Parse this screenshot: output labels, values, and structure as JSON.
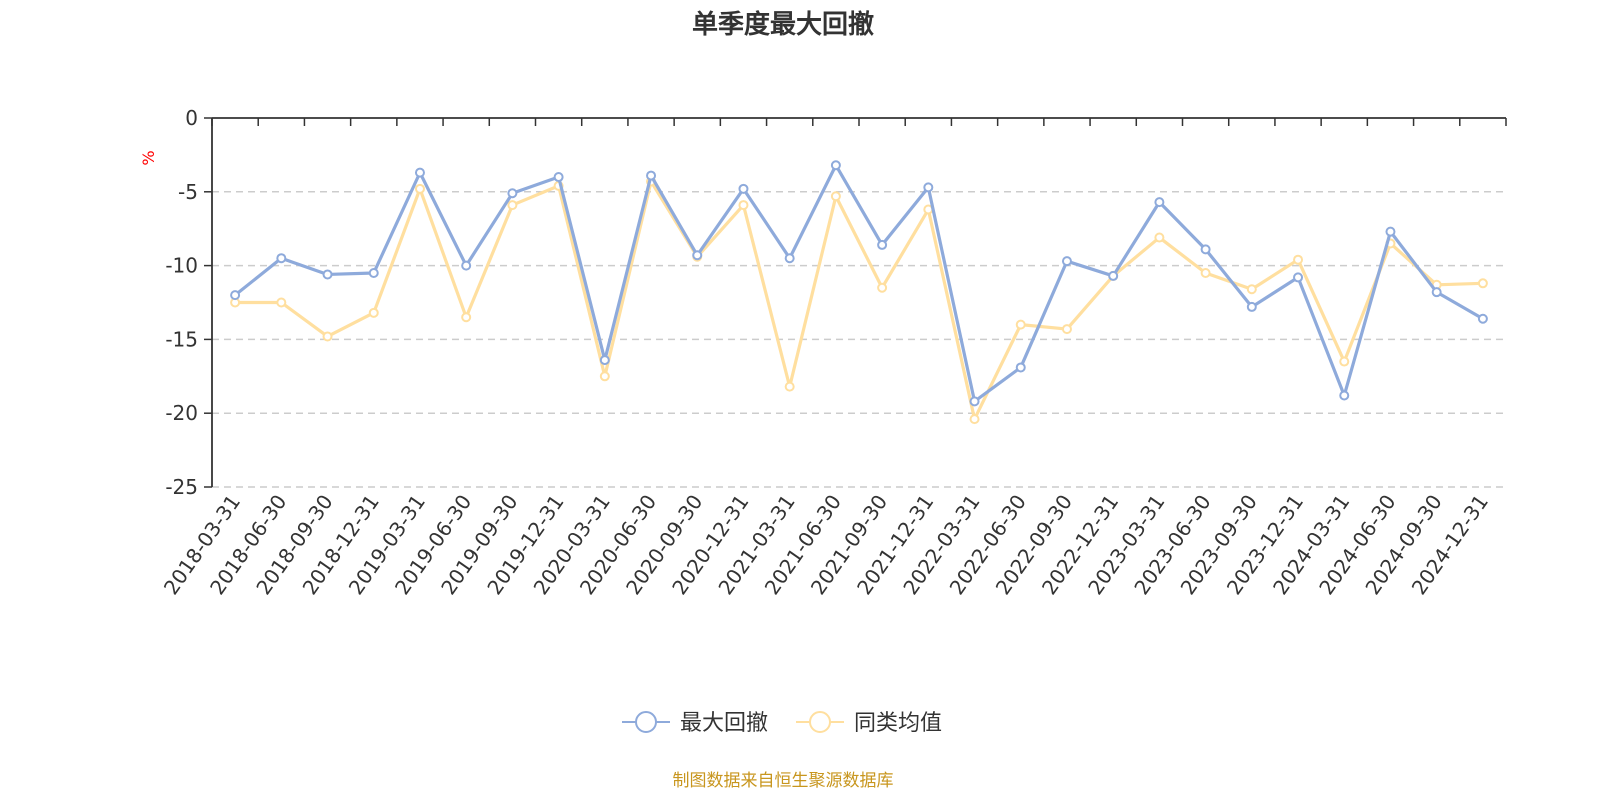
{
  "chart_data": {
    "type": "line",
    "title": "单季度最大回撤",
    "ylabel": "%",
    "ylim": [
      -25,
      0
    ],
    "yticks": [
      0,
      -5,
      -10,
      -15,
      -20,
      -25
    ],
    "y_tick_labels": [
      "0",
      "-5",
      "-10",
      "-15",
      "-20",
      "-25"
    ],
    "grid": true,
    "legend_position": "bottom-center",
    "categories": [
      "2018-03-31",
      "2018-06-30",
      "2018-09-30",
      "2018-12-31",
      "2019-03-31",
      "2019-06-30",
      "2019-09-30",
      "2019-12-31",
      "2020-03-31",
      "2020-06-30",
      "2020-09-30",
      "2020-12-31",
      "2021-03-31",
      "2021-06-30",
      "2021-09-30",
      "2021-12-31",
      "2022-03-31",
      "2022-06-30",
      "2022-09-30",
      "2022-12-31",
      "2023-03-31",
      "2023-06-30",
      "2023-09-30",
      "2023-12-31",
      "2024-03-31",
      "2024-06-30",
      "2024-09-30",
      "2024-12-31"
    ],
    "series": [
      {
        "name": "最大回撤",
        "color": "#8eaadb",
        "values": [
          -12.0,
          -9.5,
          -10.6,
          -10.5,
          -3.7,
          -10.0,
          -5.1,
          -4.0,
          -16.4,
          -3.9,
          -9.3,
          -4.8,
          -9.5,
          -3.2,
          -8.6,
          -4.7,
          -19.2,
          -16.9,
          -9.7,
          -10.7,
          -5.7,
          -8.9,
          -12.8,
          -10.8,
          -18.8,
          -7.7,
          -11.8,
          -13.6
        ]
      },
      {
        "name": "同类均值",
        "color": "#ffdf9f",
        "values": [
          -12.5,
          -12.5,
          -14.8,
          -13.2,
          -4.8,
          -13.5,
          -5.9,
          -4.6,
          -17.5,
          -4.3,
          -9.4,
          -5.9,
          -18.2,
          -5.3,
          -11.5,
          -6.2,
          -20.4,
          -14.0,
          -14.3,
          -10.7,
          -8.1,
          -10.5,
          -11.6,
          -9.6,
          -16.5,
          -8.5,
          -11.3,
          -11.2
        ]
      }
    ],
    "unit_color": "#ff0000",
    "source_color": "#c8961e"
  },
  "footer": {
    "source": "制图数据来自恒生聚源数据库"
  }
}
